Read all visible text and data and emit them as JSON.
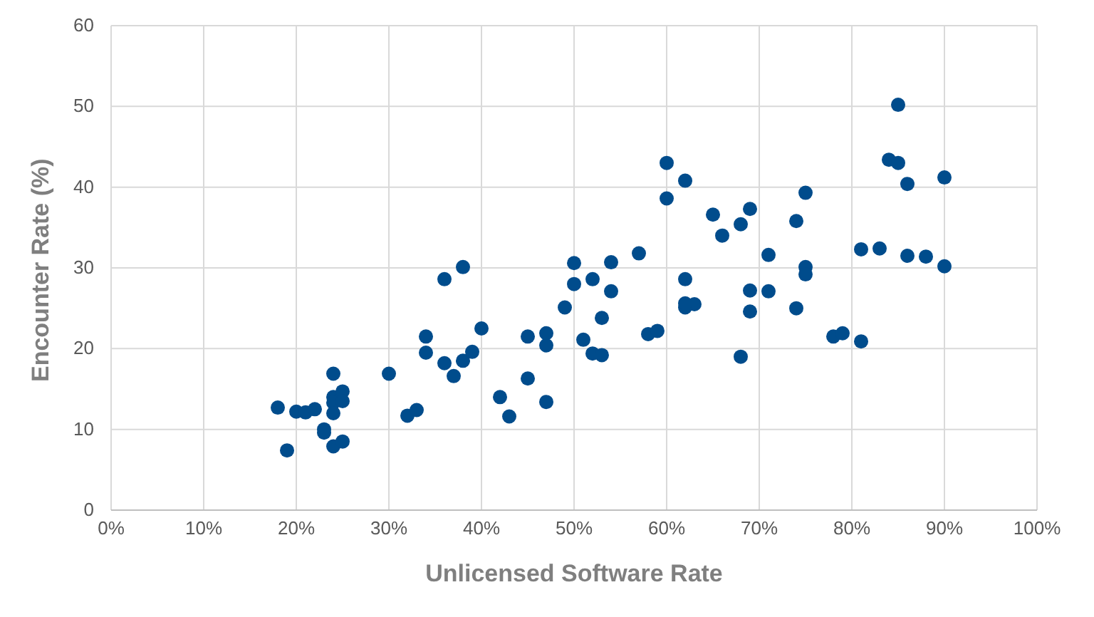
{
  "chart_data": {
    "type": "scatter",
    "xlabel": "Unlicensed Software Rate",
    "ylabel": "Encounter Rate (%)",
    "x": [
      18,
      19,
      20,
      21,
      22,
      23,
      23,
      24,
      24,
      24,
      24,
      24,
      25,
      25,
      25,
      30,
      32,
      33,
      34,
      34,
      36,
      36,
      37,
      38,
      38,
      39,
      40,
      42,
      43,
      45,
      45,
      47,
      47,
      47,
      49,
      50,
      50,
      51,
      52,
      52,
      53,
      53,
      54,
      54,
      57,
      58,
      59,
      60,
      60,
      62,
      62,
      62,
      63,
      62,
      65,
      66,
      68,
      68,
      69,
      69,
      69,
      71,
      71,
      74,
      74,
      75,
      75,
      75,
      78,
      79,
      81,
      81,
      83,
      84,
      85,
      85,
      86,
      86,
      88,
      90,
      90
    ],
    "series": [
      {
        "color": "#004c8c",
        "values": [
          12.7,
          7.4,
          12.2,
          12.1,
          12.5,
          10,
          9.6,
          16.9,
          14,
          13.3,
          12,
          7.9,
          14.7,
          13.5,
          8.5,
          16.9,
          11.7,
          12.4,
          21.5,
          19.5,
          28.6,
          18.2,
          16.6,
          30.1,
          18.5,
          19.6,
          22.5,
          14,
          11.6,
          21.5,
          16.3,
          21.9,
          20.4,
          13.4,
          25.1,
          30.6,
          28,
          21.1,
          28.6,
          19.4,
          23.8,
          19.2,
          30.7,
          27.1,
          31.8,
          21.8,
          22.2,
          43,
          38.6,
          40.8,
          28.6,
          25.1,
          25.5,
          25.6,
          36.6,
          34,
          35.4,
          19,
          37.3,
          27.2,
          24.6,
          31.6,
          27.1,
          35.8,
          25,
          39.3,
          30.1,
          29.2,
          21.5,
          21.9,
          20.9,
          32.3,
          32.4,
          43.4,
          43,
          50.2,
          40.4,
          31.5,
          31.4,
          41.2,
          30.2
        ]
      }
    ],
    "xlim": [
      0,
      100
    ],
    "xticks": [
      {
        "value": 0,
        "label": "0%"
      },
      {
        "value": 10,
        "label": "10%"
      },
      {
        "value": 20,
        "label": "20%"
      },
      {
        "value": 30,
        "label": "30%"
      },
      {
        "value": 40,
        "label": "40%"
      },
      {
        "value": 50,
        "label": "50%"
      },
      {
        "value": 60,
        "label": "60%"
      },
      {
        "value": 70,
        "label": "70%"
      },
      {
        "value": 80,
        "label": "80%"
      },
      {
        "value": 90,
        "label": "90%"
      },
      {
        "value": 100,
        "label": "100%"
      }
    ],
    "ylim": [
      0,
      60
    ],
    "yticks": [
      0,
      10,
      20,
      30,
      40,
      50,
      60
    ],
    "grid": true,
    "marker": "circle"
  }
}
